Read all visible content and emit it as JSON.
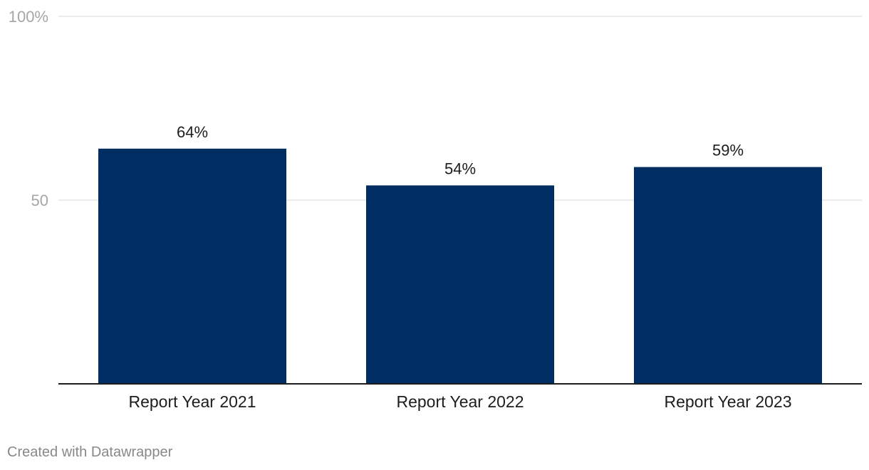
{
  "chart_data": {
    "type": "bar",
    "categories": [
      "Report Year 2021",
      "Report Year 2022",
      "Report Year 2023"
    ],
    "values": [
      64,
      54,
      59
    ],
    "value_labels": [
      "64%",
      "54%",
      "59%"
    ],
    "yticks": [
      {
        "value": 50,
        "label": "50"
      },
      {
        "value": 100,
        "label": "100%"
      }
    ],
    "ylim": [
      0,
      100
    ],
    "grid": true,
    "bar_color": "#002d62",
    "gridline_color": "#e6e6e6",
    "baseline_color": "#1d1d1d"
  },
  "footer": {
    "credit": "Created with Datawrapper"
  }
}
